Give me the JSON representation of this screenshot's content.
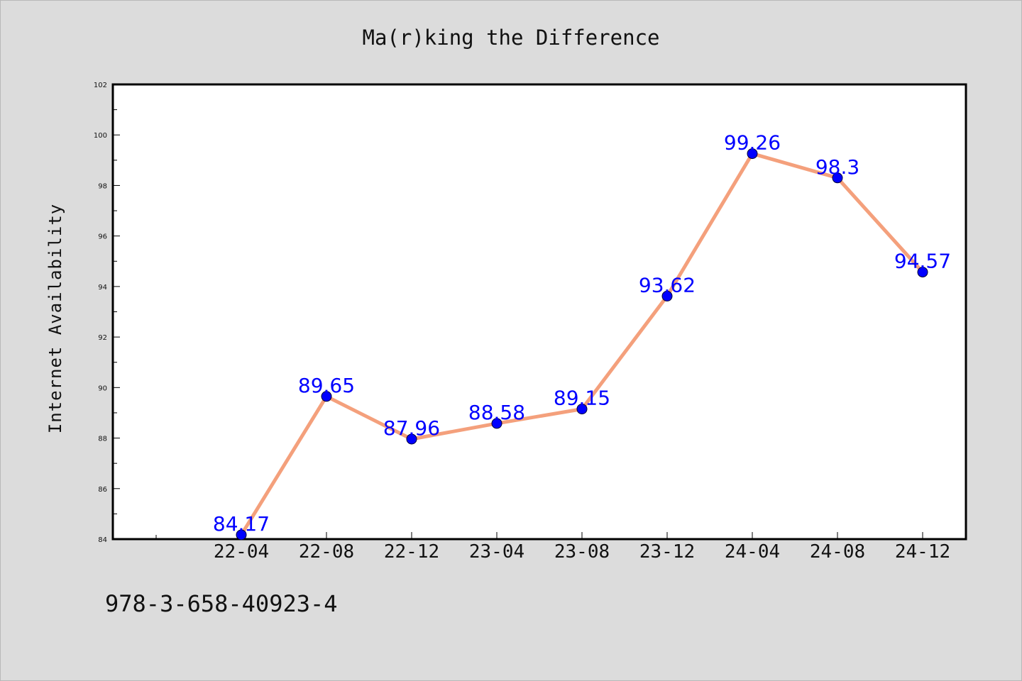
{
  "page": {
    "footer_text": "978-3-658-40923-4"
  },
  "chart_data": {
    "type": "line",
    "title": "Ma(r)king the Difference",
    "xlabel": "",
    "ylabel": "Internet Availability",
    "categories": [
      "22-04",
      "22-08",
      "22-12",
      "23-04",
      "23-08",
      "23-12",
      "24-04",
      "24-08",
      "24-12"
    ],
    "series": [
      {
        "values": [
          84.17,
          89.65,
          87.96,
          88.58,
          89.15,
          93.62,
          99.26,
          98.3,
          94.57
        ],
        "data_labels": [
          "84.17",
          "89.65",
          "87.96",
          "88.58",
          "89.15",
          "93.62",
          "99.26",
          "98.3",
          "94.57"
        ],
        "line_color": "#f4a07c",
        "marker_color": "#0000ff"
      }
    ],
    "ylim": [
      84,
      102
    ],
    "yticks": [
      84,
      86,
      88,
      90,
      92,
      94,
      96,
      98,
      100,
      102
    ],
    "ytick_labels": [
      "84",
      "86",
      "88",
      "90",
      "92",
      "94",
      "96",
      "98",
      "100",
      "102"
    ],
    "grid": false,
    "legend": "none",
    "colors": {
      "background": "#dcdcdc",
      "plot_area": "#ffffff",
      "data_label": "#0000ff"
    }
  }
}
